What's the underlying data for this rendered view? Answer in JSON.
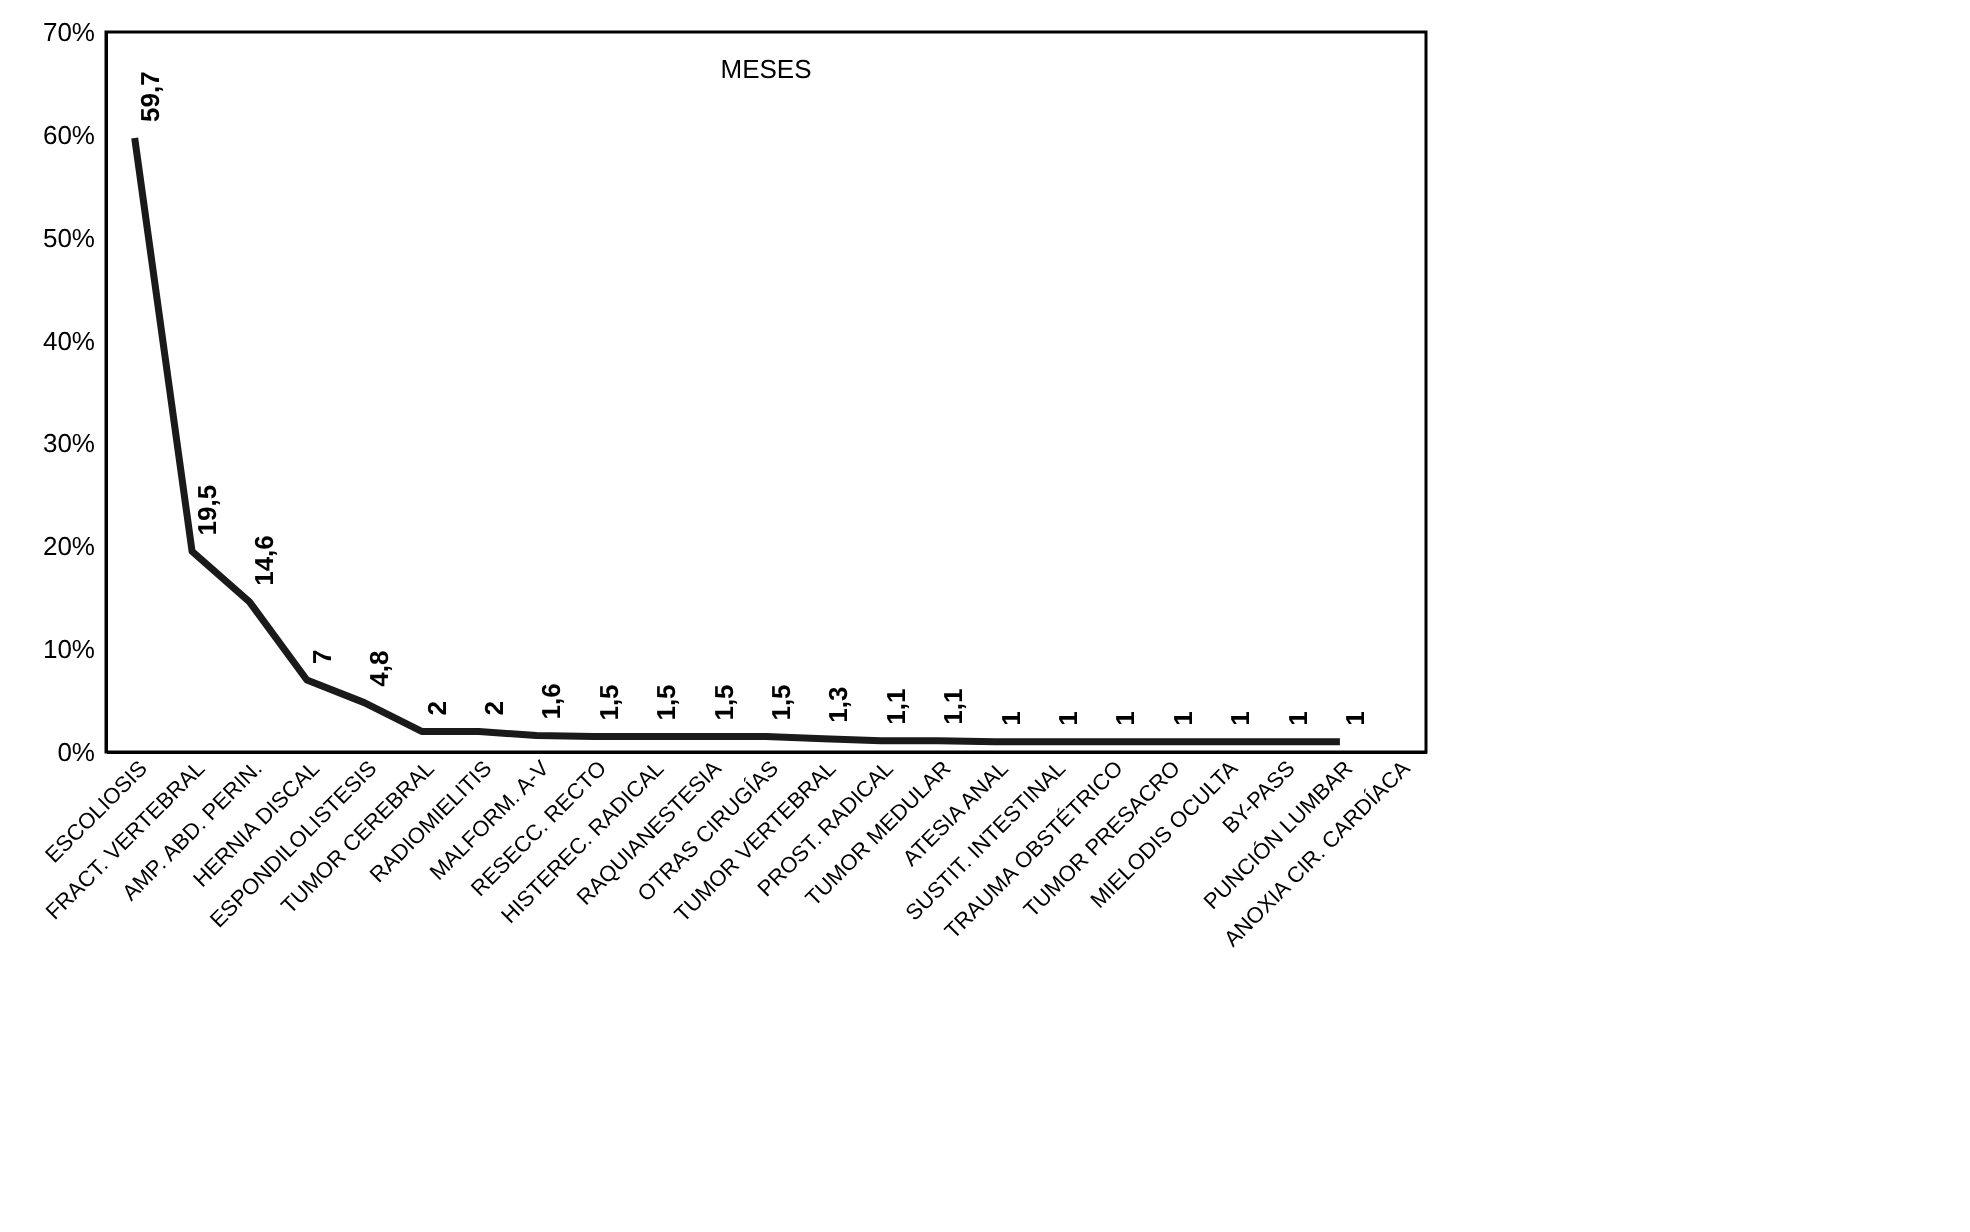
{
  "chart_data": {
    "type": "line",
    "title": "MESES",
    "categories": [
      "ESCOLIOSIS",
      "FRACT. VERTEBRAL",
      "AMP. ABD. PERIN.",
      "HERNIA DISCAL",
      "ESPONDILOLISTESIS",
      "TUMOR CEREBRAL",
      "RADIOMIELITIS",
      "MALFORM. A-V",
      "RESECC. RECTO",
      "HISTEREC. RADICAL",
      "RAQUIANESTESIA",
      "OTRAS CIRUGÍAS",
      "TUMOR VERTEBRAL",
      "PROST. RADICAL",
      "TUMOR MEDULAR",
      "ATESIA ANAL",
      "SUSTIT. INTESTINAL",
      "TRAUMA OBSTÉTRICO",
      "TUMOR PRESACRO",
      "MIELODIS OCULTA",
      "BY-PASS",
      "PUNCIÓN LUMBAR",
      "ANOXIA CIR. CARDÍACA"
    ],
    "series": [
      {
        "color": "#1a1a1a",
        "values": [
          59.7,
          19.5,
          14.6,
          7,
          4.8,
          2,
          2,
          1.6,
          1.5,
          1.5,
          1.5,
          1.5,
          1.3,
          1.1,
          1.1,
          1,
          1,
          1,
          1,
          1,
          1,
          1,
          null
        ],
        "value_labels": [
          "59,7",
          "19,5",
          "14,6",
          "7",
          "4,8",
          "2",
          "2",
          "1,6",
          "1,5",
          "1,5",
          "1,5",
          "1,5",
          "1,3",
          "1,1",
          "1,1",
          "1",
          "1",
          "1",
          "1",
          "1",
          "1",
          "1",
          null
        ]
      }
    ],
    "ylim": [
      0,
      70
    ],
    "yticks": [
      {
        "value": 0,
        "label": "0%"
      },
      {
        "value": 10,
        "label": "10%"
      },
      {
        "value": 20,
        "label": "20%"
      },
      {
        "value": 30,
        "label": "30%"
      },
      {
        "value": 40,
        "label": "40%"
      },
      {
        "value": 50,
        "label": "50%"
      },
      {
        "value": 60,
        "label": "60%"
      },
      {
        "value": 70,
        "label": "70%"
      }
    ],
    "grid": false,
    "marker": "none",
    "line_style": "solid"
  }
}
